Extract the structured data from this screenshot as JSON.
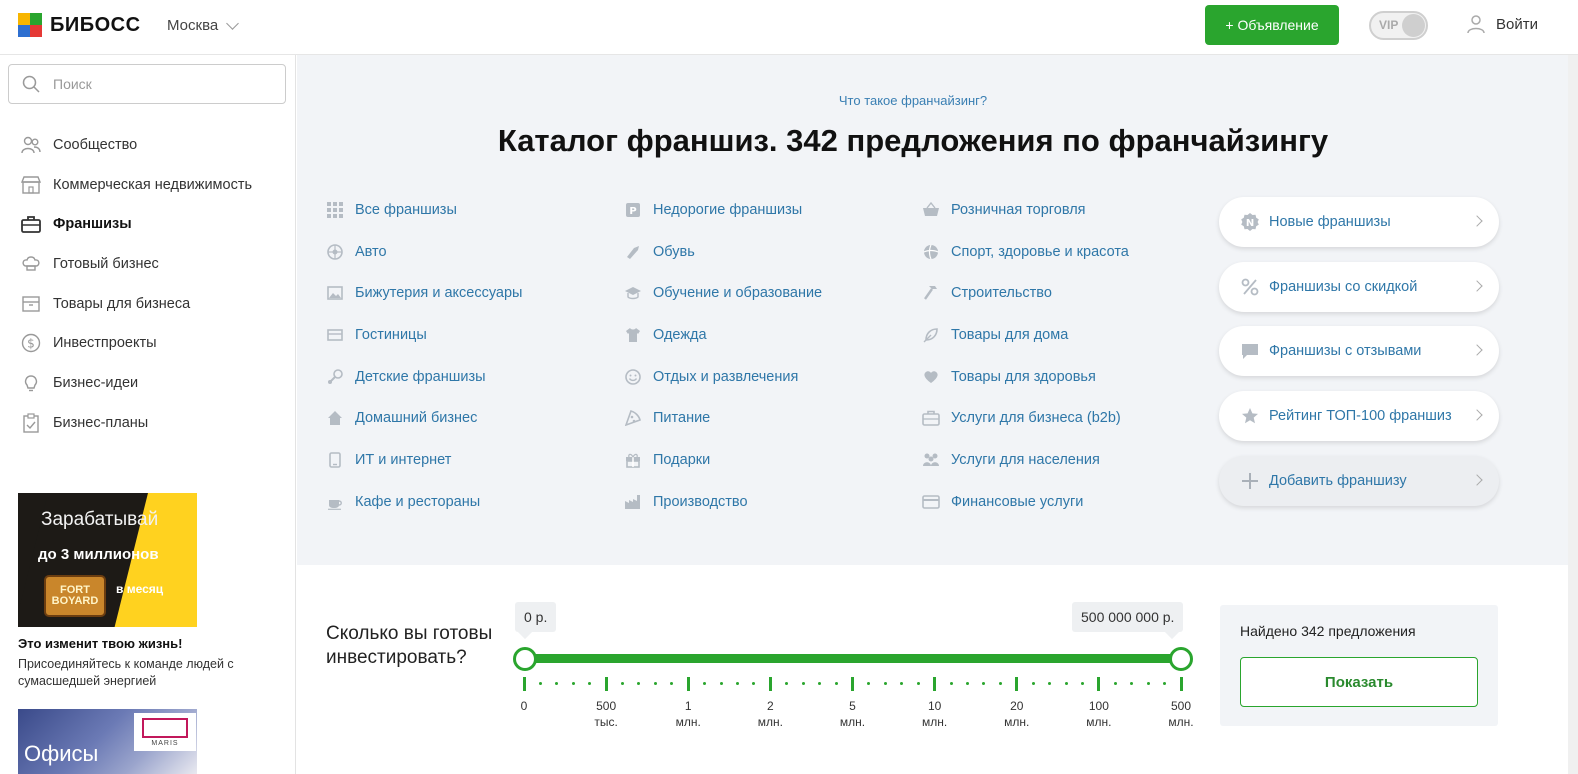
{
  "header": {
    "logo_text": "БИБОСС",
    "city": "Москва",
    "ad_button": "+ Объявление",
    "vip_label": "VIP",
    "login": "Войти"
  },
  "sidebar": {
    "search_placeholder": "Поиск",
    "items": [
      {
        "label": "Сообщество",
        "icon": "people-icon"
      },
      {
        "label": "Коммерческая недвижимость",
        "icon": "store-icon"
      },
      {
        "label": "Франшизы",
        "icon": "briefcase-icon",
        "active": true
      },
      {
        "label": "Готовый бизнес",
        "icon": "chef-hat-icon"
      },
      {
        "label": "Товары для бизнеса",
        "icon": "box-icon"
      },
      {
        "label": "Инвестпроекты",
        "icon": "dollar-coin-icon"
      },
      {
        "label": "Бизнес-идеи",
        "icon": "lightbulb-icon"
      },
      {
        "label": "Бизнес-планы",
        "icon": "clipboard-icon"
      }
    ],
    "promo1": {
      "line1": "Зарабатывай",
      "line2": "до 3 миллионов",
      "logo_text": "FORT BOYARD",
      "line3": "в месяц",
      "heading": "Это изменит твою жизнь!",
      "subtext": "Присоединяйтесь к команде людей с сумасшедшей энергией"
    },
    "promo2": {
      "text": "Офисы",
      "logo_text": "MARIS"
    }
  },
  "catalog": {
    "what_link": "Что такое франчайзинг?",
    "title": "Каталог франшиз. 342 предложения по франчайзингу",
    "col1": [
      {
        "label": "Все франшизы",
        "icon": "grid-icon"
      },
      {
        "label": "Авто",
        "icon": "wheel-icon"
      },
      {
        "label": "Бижутерия и аксессуары",
        "icon": "image-icon"
      },
      {
        "label": "Гостиницы",
        "icon": "hotel-icon"
      },
      {
        "label": "Детские франшизы",
        "icon": "rattle-icon"
      },
      {
        "label": "Домашний бизнес",
        "icon": "home-icon"
      },
      {
        "label": "ИТ и интернет",
        "icon": "phone-icon"
      },
      {
        "label": "Кафе и рестораны",
        "icon": "coffee-cup-icon"
      }
    ],
    "col2": [
      {
        "label": "Недорогие франшизы",
        "icon": "price-tag-icon"
      },
      {
        "label": "Обувь",
        "icon": "shoe-icon"
      },
      {
        "label": "Обучение и образование",
        "icon": "graduation-cap-icon"
      },
      {
        "label": "Одежда",
        "icon": "tshirt-icon"
      },
      {
        "label": "Отдых и развлечения",
        "icon": "smile-icon"
      },
      {
        "label": "Питание",
        "icon": "pizza-icon"
      },
      {
        "label": "Подарки",
        "icon": "gift-icon"
      },
      {
        "label": "Производство",
        "icon": "factory-icon"
      }
    ],
    "col3": [
      {
        "label": "Розничная торговля",
        "icon": "basket-icon"
      },
      {
        "label": "Спорт, здоровье и красота",
        "icon": "ball-icon"
      },
      {
        "label": "Строительство",
        "icon": "hammer-icon"
      },
      {
        "label": "Товары для дома",
        "icon": "leaf-icon"
      },
      {
        "label": "Товары для здоровья",
        "icon": "heart-icon"
      },
      {
        "label": "Услуги для бизнеса (b2b)",
        "icon": "briefcase-icon"
      },
      {
        "label": "Услуги для населения",
        "icon": "group-icon"
      },
      {
        "label": "Финансовые услуги",
        "icon": "card-icon"
      }
    ],
    "right_buttons": [
      {
        "label": "Новые франшизы",
        "icon": "new-badge-icon",
        "badge_letter": "N"
      },
      {
        "label": "Франшизы со скидкой",
        "icon": "percent-icon"
      },
      {
        "label": "Франшизы с отзывами",
        "icon": "comment-icon"
      },
      {
        "label": "Рейтинг ТОП-100 франшиз",
        "icon": "star-icon"
      },
      {
        "label": "Добавить франшизу",
        "icon": "plus-icon"
      }
    ]
  },
  "investment": {
    "question": "Сколько вы готовы инвестировать?",
    "min_value": "0 р.",
    "max_value": "500 000 000 р.",
    "scale": [
      {
        "value": "0",
        "unit": ""
      },
      {
        "value": "500",
        "unit": "тыс."
      },
      {
        "value": "1",
        "unit": "млн."
      },
      {
        "value": "2",
        "unit": "млн."
      },
      {
        "value": "5",
        "unit": "млн."
      },
      {
        "value": "10",
        "unit": "млн."
      },
      {
        "value": "20",
        "unit": "млн."
      },
      {
        "value": "100",
        "unit": "млн."
      },
      {
        "value": "500",
        "unit": "млн."
      }
    ],
    "found_text": "Найдено 342 предложения",
    "show_button": "Показать"
  },
  "colors": {
    "accent_green": "#2aa52e",
    "link_blue": "#2f77a8",
    "catalog_bg": "#f2f4f7"
  }
}
